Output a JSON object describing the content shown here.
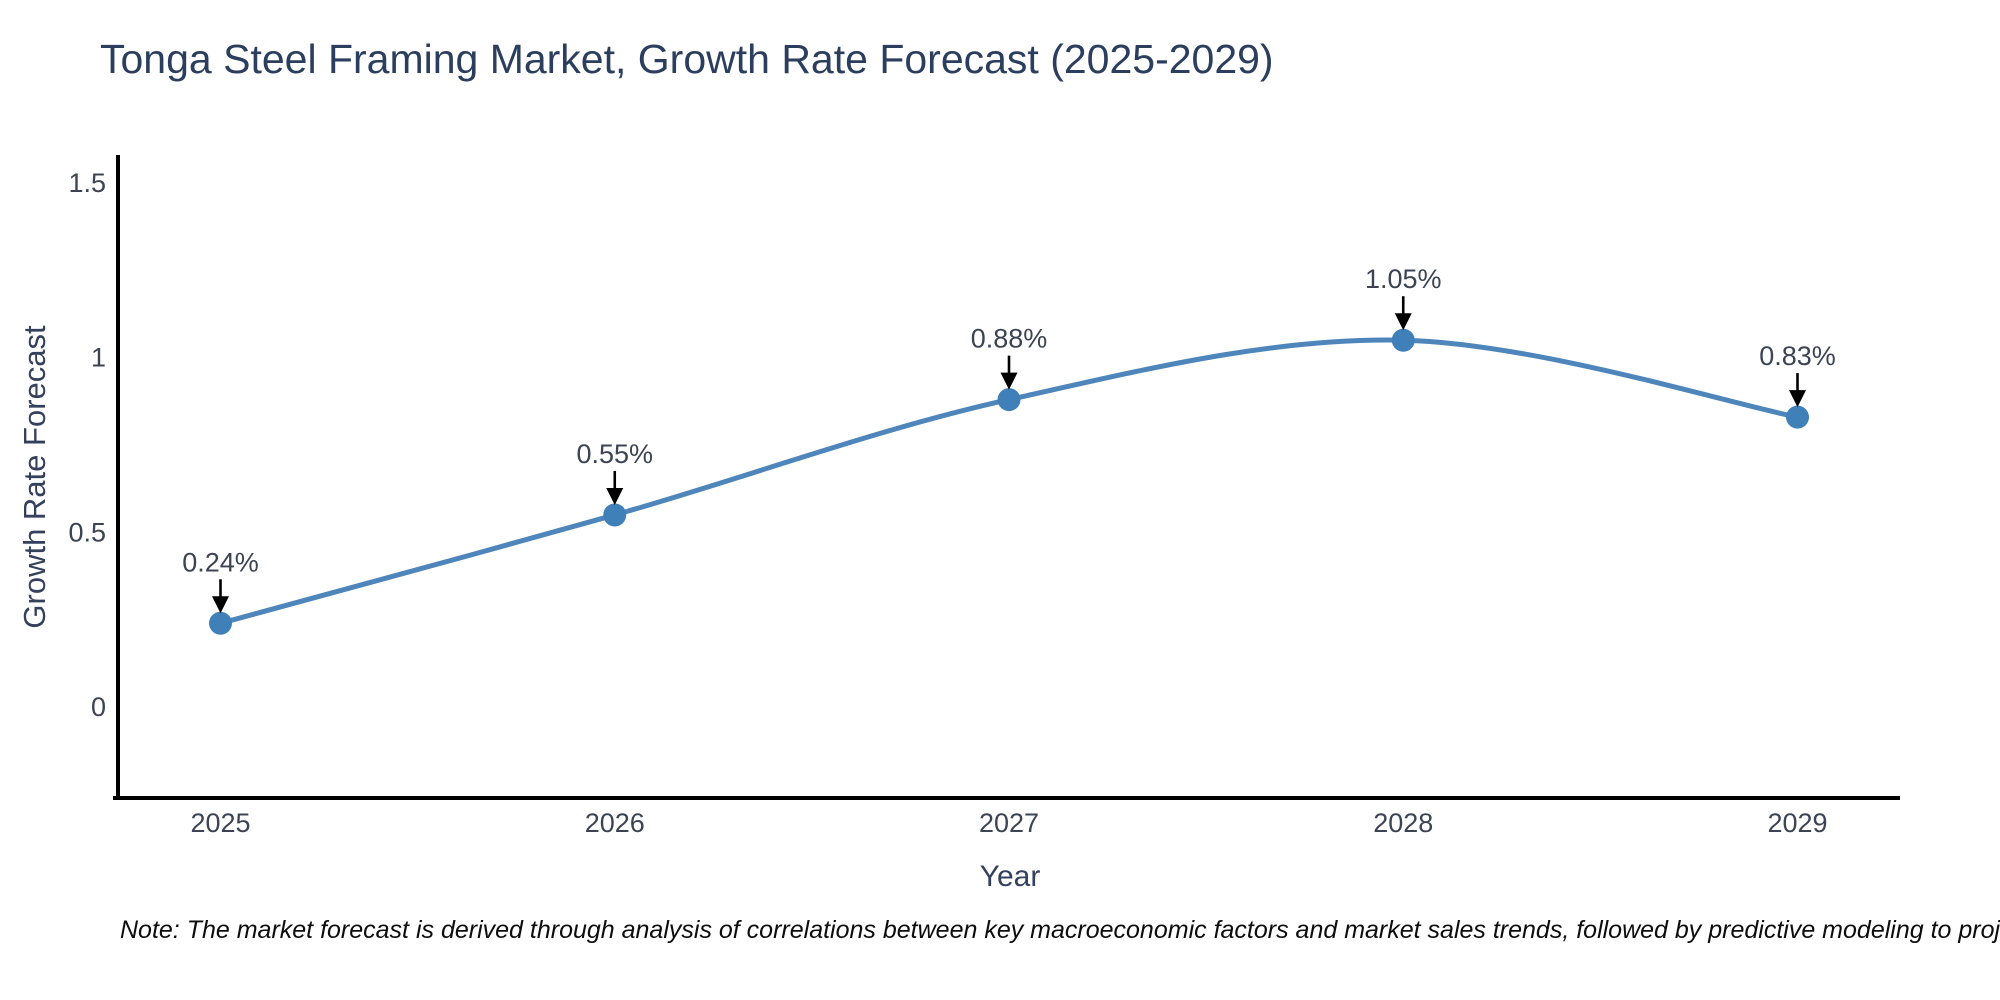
{
  "chart": {
    "title": "Tonga Steel Framing Market, Growth Rate Forecast (2025-2029)"
  },
  "chart_data": {
    "type": "line",
    "title": "Tonga Steel Framing Market, Growth Rate Forecast (2025-2029)",
    "xlabel": "Year",
    "ylabel": "Growth Rate Forecast",
    "x": [
      2025,
      2026,
      2027,
      2028,
      2029
    ],
    "values": [
      0.24,
      0.55,
      0.88,
      1.05,
      0.83
    ],
    "point_labels": [
      "0.24%",
      "0.55%",
      "0.88%",
      "1.05%",
      "0.83%"
    ],
    "x_tick_labels": [
      "2025",
      "2026",
      "2027",
      "2028",
      "2029"
    ],
    "y_ticks": [
      0,
      0.5,
      1,
      1.5
    ],
    "y_tick_labels": [
      "0",
      "0.5",
      "1",
      "1.5"
    ],
    "xlim": [
      2024.74,
      2029.26
    ],
    "ylim": [
      -0.26,
      1.58
    ],
    "grid": false,
    "legend": "none",
    "line_shape": "spline",
    "annotation_style": "label-above-with-down-arrow",
    "colors": {
      "line": "#4e86bb",
      "marker": "#4080b8",
      "axis": "#000000",
      "tick_text": "#3c4454",
      "annotation_text": "#3c4454",
      "annotation_arrow": "#000000",
      "title_text": "#2c3e5d"
    }
  },
  "note": {
    "text": "Note: The market forecast is derived through analysis of correlations between key macroeconomic factors and market sales trends, followed by predictive modeling to project future sales"
  }
}
